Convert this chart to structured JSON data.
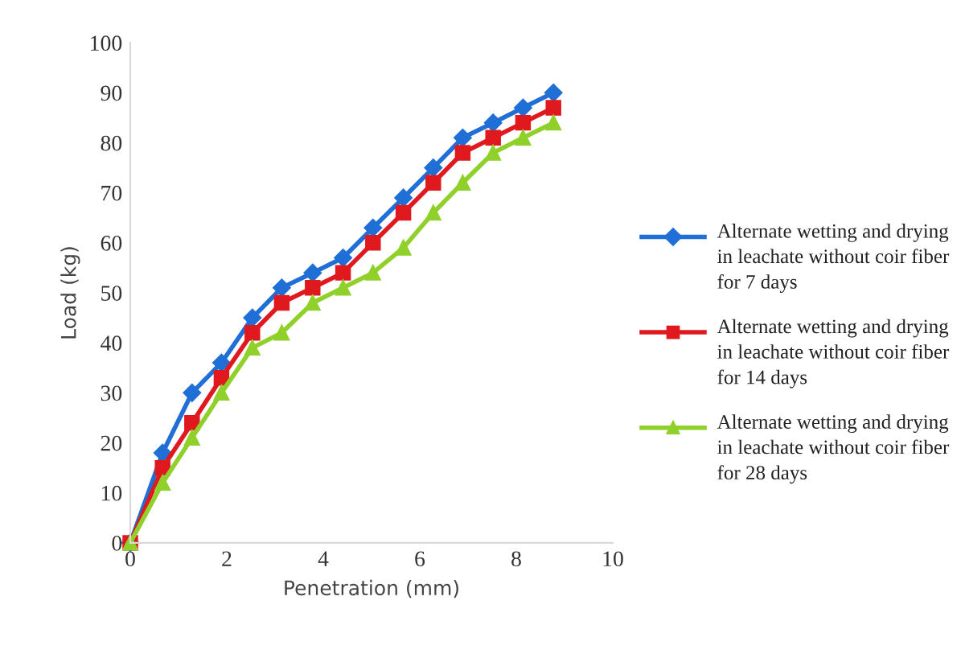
{
  "chart_data": {
    "type": "line",
    "xlabel": "Penetration (mm)",
    "ylabel": "Load (kg)",
    "x": [
      0,
      0.67,
      1.28,
      1.89,
      2.53,
      3.14,
      3.78,
      4.41,
      5.03,
      5.66,
      6.28,
      6.89,
      7.52,
      8.14,
      8.77
    ],
    "series": [
      {
        "name": "Alternate wetting and drying in leachate without coir fiber for 7 days",
        "color": "#1f6fd6",
        "marker": "diamond",
        "values": [
          0,
          18,
          30,
          36,
          45,
          51,
          54,
          57,
          63,
          69,
          75,
          81,
          84,
          87,
          90
        ]
      },
      {
        "name": "Alternate wetting and drying in leachate without coir fiber for 14 days",
        "color": "#e0191e",
        "marker": "square",
        "values": [
          0,
          15,
          24,
          33,
          42,
          48,
          51,
          54,
          60,
          66,
          72,
          78,
          81,
          84,
          87
        ]
      },
      {
        "name": "Alternate wetting and drying in leachate without coir fiber for 28 days",
        "color": "#8fd12a",
        "marker": "triangle",
        "values": [
          0,
          12,
          21,
          30,
          39,
          42,
          48,
          51,
          54,
          59,
          66,
          72,
          78,
          81,
          84
        ]
      }
    ],
    "xlim": [
      0,
      10
    ],
    "xticks": [
      0,
      2,
      4,
      6,
      8,
      10
    ],
    "ylim": [
      0,
      100
    ],
    "yticks": [
      0,
      10,
      20,
      30,
      40,
      50,
      60,
      70,
      80,
      90,
      100
    ],
    "grid": false,
    "legend": "right",
    "line_style": "solid"
  }
}
